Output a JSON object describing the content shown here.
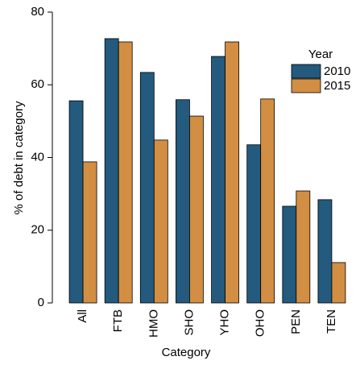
{
  "chart_data": {
    "type": "bar",
    "x_label": "Category",
    "y_label": "% of debt in category",
    "categories": [
      "All",
      "FTB",
      "HMO",
      "SHO",
      "YHO",
      "OHO",
      "PEN",
      "TEN"
    ],
    "series": [
      {
        "name": "2010",
        "color": "#235a7e",
        "values": [
          55.6,
          72.7,
          63.4,
          55.9,
          67.8,
          43.5,
          26.6,
          28.4
        ]
      },
      {
        "name": "2015",
        "color": "#d28e42",
        "values": [
          38.8,
          71.8,
          44.8,
          51.4,
          71.8,
          56.1,
          30.8,
          11.1
        ]
      }
    ],
    "ylim": [
      0,
      80
    ],
    "yticks": [
      0,
      20,
      40,
      60,
      80
    ],
    "legend_title": "Year",
    "legend": "upper right"
  }
}
